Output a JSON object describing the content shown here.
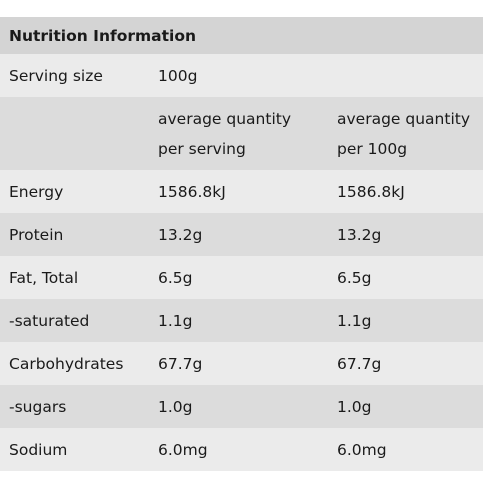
{
  "title": "Nutrition Information",
  "serving": {
    "label": "Serving size",
    "value": "100g"
  },
  "columns": {
    "per_serving": [
      "average quantity",
      "per serving"
    ],
    "per_100g": [
      "average quantity",
      "per 100g"
    ]
  },
  "rows": [
    {
      "label": "Energy",
      "per_serving": "1586.8kJ",
      "per_100g": "1586.8kJ"
    },
    {
      "label": "Protein",
      "per_serving": "13.2g",
      "per_100g": "13.2g"
    },
    {
      "label": "Fat, Total",
      "per_serving": "6.5g",
      "per_100g": "6.5g"
    },
    {
      "label": "-saturated",
      "per_serving": "1.1g",
      "per_100g": "1.1g"
    },
    {
      "label": "Carbohydrates",
      "per_serving": "67.7g",
      "per_100g": "67.7g"
    },
    {
      "label": "-sugars",
      "per_serving": "1.0g",
      "per_100g": "1.0g"
    },
    {
      "label": "Sodium",
      "per_serving": "6.0mg",
      "per_100g": "6.0mg"
    }
  ]
}
